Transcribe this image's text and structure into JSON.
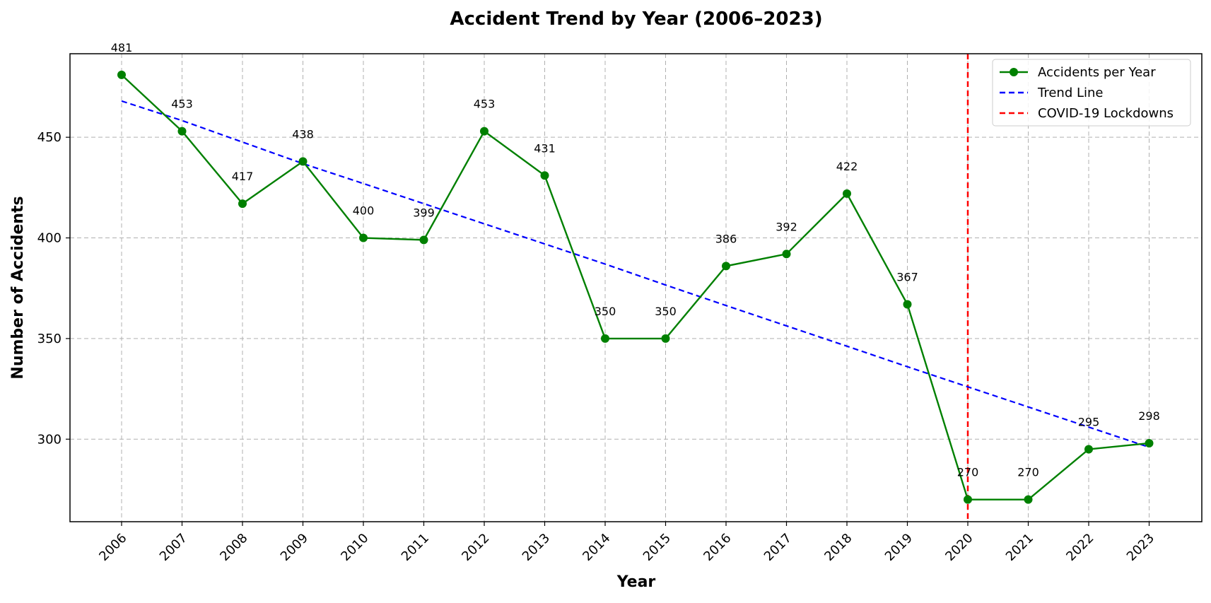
{
  "chart_data": {
    "type": "line",
    "title": "Accident Trend by Year (2006–2023)",
    "xlabel": "Year",
    "ylabel": "Number of Accidents",
    "categories": [
      "2006",
      "2007",
      "2008",
      "2009",
      "2010",
      "2011",
      "2012",
      "2013",
      "2014",
      "2015",
      "2016",
      "2017",
      "2018",
      "2019",
      "2020",
      "2021",
      "2022",
      "2023"
    ],
    "series": [
      {
        "name": "Accidents per Year",
        "color": "#008000",
        "style": "solid-with-markers",
        "values": [
          481,
          453,
          417,
          438,
          400,
          399,
          453,
          431,
          350,
          350,
          386,
          392,
          422,
          367,
          270,
          270,
          295,
          298
        ]
      },
      {
        "name": "Trend Line",
        "color": "#0000ff",
        "style": "dashed",
        "values": [
          468,
          458.3,
          447.6,
          436.9,
          427,
          417,
          407,
          397,
          387,
          376.6,
          366.4,
          356.3,
          346.2,
          336,
          326,
          316,
          306,
          296
        ]
      }
    ],
    "annotations": [
      {
        "name": "COVID-19 Lockdowns",
        "type": "vertical-line",
        "x": "2020",
        "color": "#ff0000",
        "style": "dashed"
      }
    ],
    "y_ticks": [
      300,
      350,
      400,
      450
    ],
    "ylim": [
      259,
      491.5
    ],
    "grid": true,
    "legend_position": "top-right",
    "x_tick_rotation": 45
  }
}
